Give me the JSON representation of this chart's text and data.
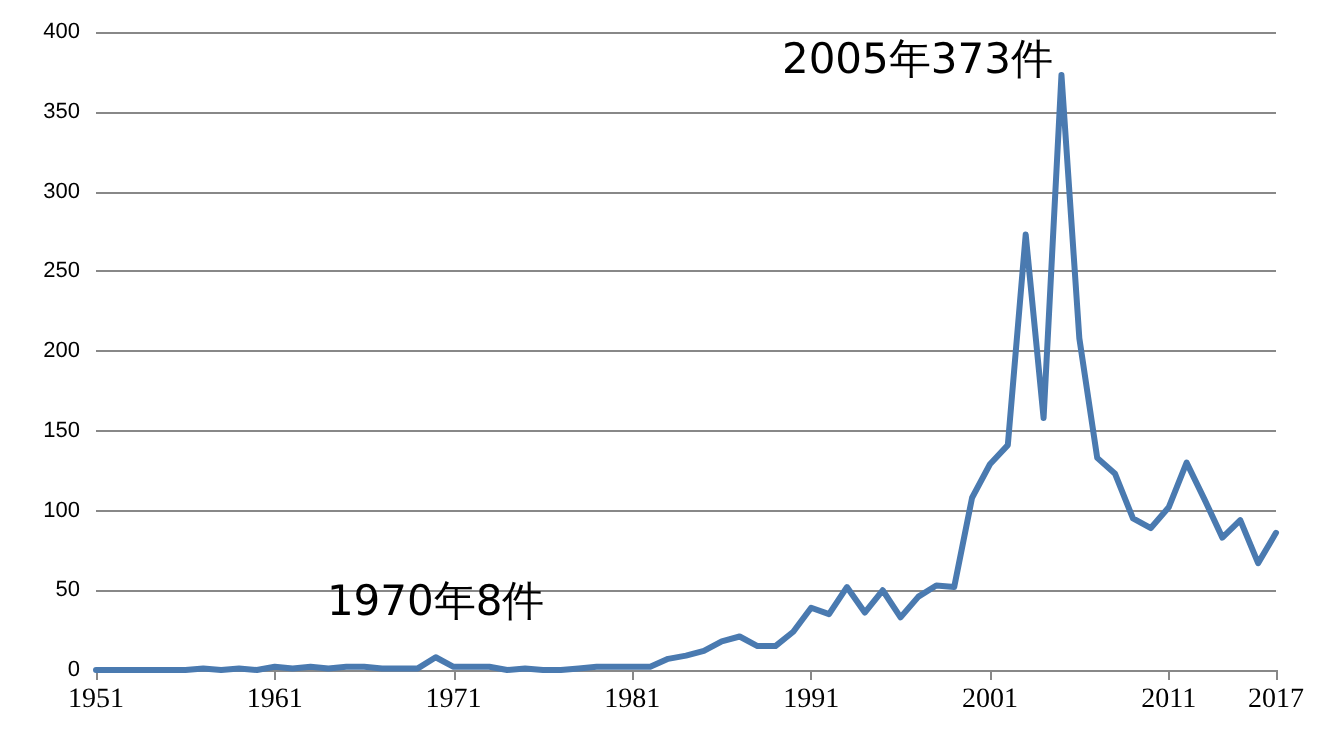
{
  "chart_data": {
    "type": "line",
    "x": [
      1951,
      1952,
      1953,
      1954,
      1955,
      1956,
      1957,
      1958,
      1959,
      1960,
      1961,
      1962,
      1963,
      1964,
      1965,
      1966,
      1967,
      1968,
      1969,
      1970,
      1971,
      1972,
      1973,
      1974,
      1975,
      1976,
      1977,
      1978,
      1979,
      1980,
      1981,
      1982,
      1983,
      1984,
      1985,
      1986,
      1987,
      1988,
      1989,
      1990,
      1991,
      1992,
      1993,
      1994,
      1995,
      1996,
      1997,
      1998,
      1999,
      2000,
      2001,
      2002,
      2003,
      2004,
      2005,
      2006,
      2007,
      2008,
      2009,
      2010,
      2011,
      2012,
      2013,
      2014,
      2015,
      2016,
      2017
    ],
    "series": [
      {
        "color": "#4a7ab0",
        "values": [
          0,
          0,
          0,
          0,
          0,
          0,
          1,
          0,
          1,
          0,
          2,
          1,
          2,
          1,
          2,
          2,
          1,
          1,
          1,
          8,
          2,
          2,
          2,
          0,
          1,
          0,
          0,
          1,
          2,
          2,
          2,
          2,
          7,
          9,
          12,
          18,
          21,
          15,
          15,
          24,
          39,
          35,
          52,
          36,
          50,
          33,
          46,
          53,
          52,
          108,
          129,
          141,
          273,
          158,
          373,
          208,
          133,
          123,
          95,
          89,
          102,
          130,
          107,
          83,
          94,
          67,
          86
        ]
      }
    ],
    "xlim": [
      1951,
      2017
    ],
    "xticks": [
      1951,
      1961,
      1971,
      1981,
      1991,
      2001,
      2011,
      2017
    ],
    "ylim": [
      0,
      400
    ],
    "yticks": [
      0,
      50,
      100,
      150,
      200,
      250,
      300,
      350,
      400
    ],
    "grid": "y",
    "marker": "none",
    "line_style": "solid",
    "annotations": [
      {
        "text": "1970年8件",
        "x": 1970,
        "y": 8
      },
      {
        "text": "2005年373件",
        "x": 2005,
        "y": 373
      }
    ]
  }
}
